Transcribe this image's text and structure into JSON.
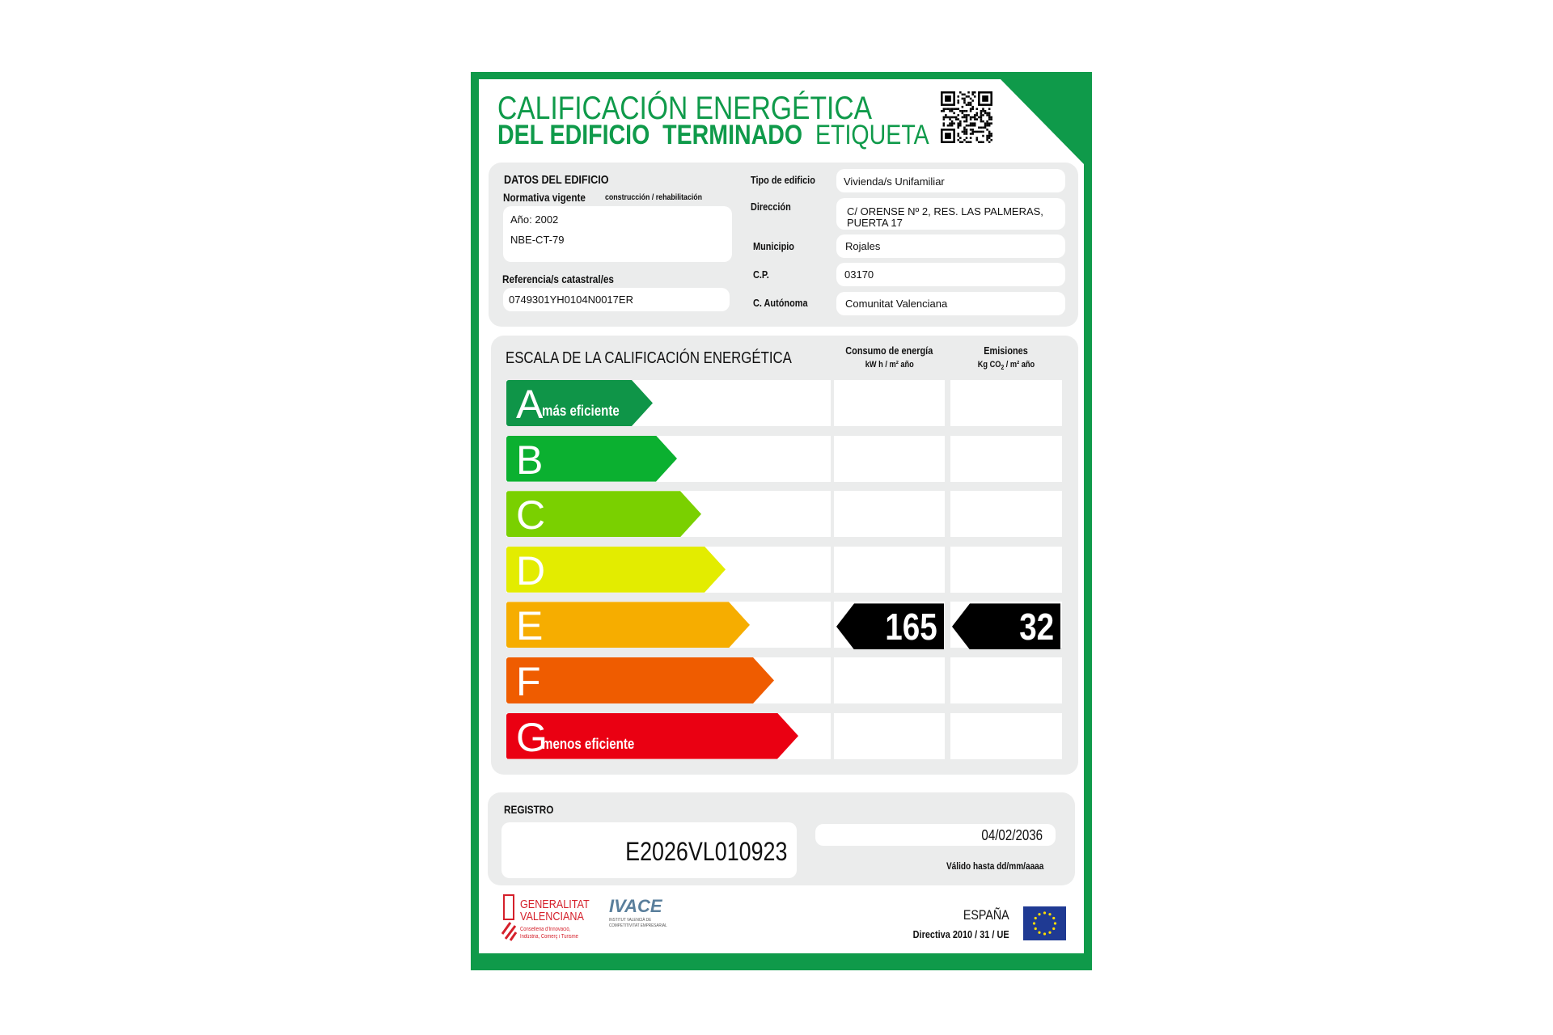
{
  "header": {
    "title_line1": "CALIFICACIÓN ENERGÉTICA",
    "title_line2_bold": "DEL EDIFICIO  TERMINADO",
    "title_line2_regular": "ETIQUETA",
    "qr_icon": "qr-code"
  },
  "building": {
    "section_title": "DATOS DEL EDIFICIO",
    "normativa_label": "Normativa vigente",
    "normativa_hint": "construcción / rehabilitación",
    "normativa_year": "Año: 2002",
    "normativa_code": "NBE-CT-79",
    "referencia_label": "Referencia/s catastral/es",
    "referencia_value": "0749301YH0104N0017ER",
    "fields": [
      {
        "label": "Tipo de edificio",
        "value": "Vivienda/s Unifamiliar"
      },
      {
        "label": "Dirección",
        "value": "C/ ORENSE Nº 2, RES. LAS PALMERAS,",
        "value2": "PUERTA 17"
      },
      {
        "label": "Municipio",
        "value": "Rojales"
      },
      {
        "label": "C.P.",
        "value": "03170"
      },
      {
        "label": "C. Autónoma",
        "value": "Comunitat Valenciana"
      }
    ]
  },
  "scale": {
    "title": "ESCALA DE LA CALIFICACIÓN ENERGÉTICA",
    "energy_header": "Consumo de energía",
    "energy_unit": "kW h / m² año",
    "emissions_header": "Emisiones",
    "emissions_unit_pre": "Kg CO",
    "emissions_unit_sub": "2",
    "emissions_unit_post": " / m² año",
    "classes": [
      {
        "letter": "A",
        "sub": "más eficiente",
        "color": "#0f9548"
      },
      {
        "letter": "B",
        "sub": "",
        "color": "#0bb030"
      },
      {
        "letter": "C",
        "sub": "",
        "color": "#7ad000"
      },
      {
        "letter": "D",
        "sub": "",
        "color": "#e3ec00"
      },
      {
        "letter": "E",
        "sub": "",
        "color": "#f6ad00"
      },
      {
        "letter": "F",
        "sub": "",
        "color": "#ef5c00"
      },
      {
        "letter": "G",
        "sub": "menos eficiente",
        "color": "#ea0012"
      }
    ],
    "rating_class": "E",
    "energy_value": "165",
    "emissions_value": "32"
  },
  "registro": {
    "label": "REGISTRO",
    "number": "E2026VL010923",
    "valid_until": "04/02/2036",
    "valid_label": "Válido hasta dd/mm/aaaa"
  },
  "footer": {
    "gv_line1": "GENERALITAT",
    "gv_line2": "VALENCIANA",
    "gv_sub1": "Conselleria d'Innovació,",
    "gv_sub2": "Indústria, Comerç i Turisme",
    "ivace": "IVACE",
    "ivace_sub1": "INSTITUT VALENCIÀ DE",
    "ivace_sub2": "COMPETITIVITAT EMPRESARIAL",
    "country": "ESPAÑA",
    "directive": "Directiva 2010 / 31 / UE"
  },
  "colors": {
    "brand_green": "#0f9a4a",
    "eu_blue": "#1f3a93",
    "eu_yellow": "#ffdd00",
    "gv_red": "#d5202b"
  }
}
